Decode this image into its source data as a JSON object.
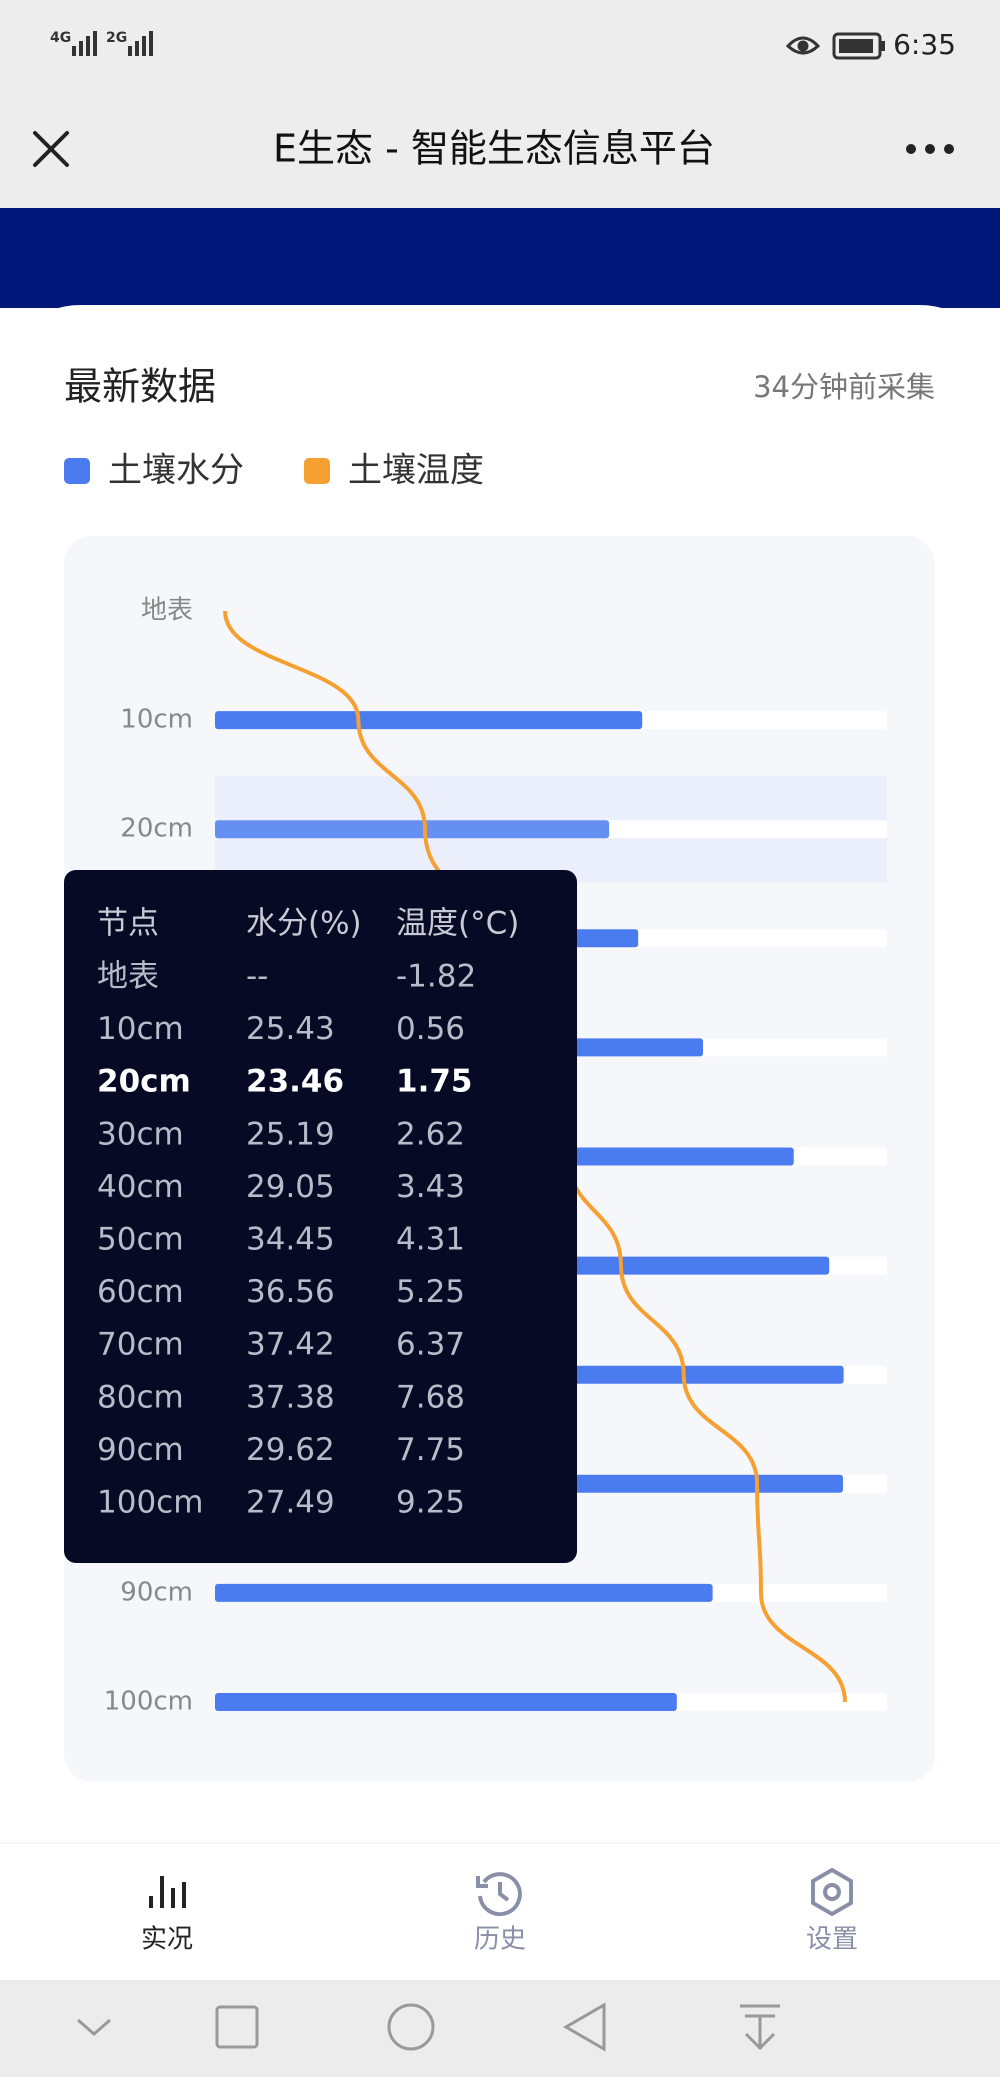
{
  "status_bar": {
    "signal_1": "4G",
    "signal_2": "2G",
    "time": "6:35"
  },
  "header": {
    "title": "E生态 - 智能生态信息平台"
  },
  "card": {
    "title": "最新数据",
    "subtitle": "34分钟前采集"
  },
  "chart_data": {
    "type": "bar",
    "orientation": "horizontal",
    "categories": [
      "地表",
      "10cm",
      "20cm",
      "30cm",
      "40cm",
      "50cm",
      "60cm",
      "70cm",
      "80cm",
      "90cm",
      "100cm"
    ],
    "series": [
      {
        "name": "土壤水分",
        "color": "#4a7cf0",
        "type": "bar",
        "values": [
          null,
          25.43,
          23.46,
          25.19,
          29.05,
          34.45,
          36.56,
          37.42,
          37.38,
          29.62,
          27.49
        ]
      },
      {
        "name": "土壤温度",
        "color": "#f5a031",
        "type": "line",
        "axis": "x2",
        "values": [
          -1.82,
          0.56,
          1.75,
          2.62,
          3.43,
          4.31,
          5.25,
          6.37,
          7.68,
          7.75,
          9.25
        ]
      }
    ],
    "xlim": [
      0,
      40
    ],
    "x2lim": [
      -2,
      10
    ],
    "highlight_index": 2
  },
  "tooltip": {
    "headers": [
      "节点",
      "水分(%)",
      "温度(°C)"
    ],
    "rows": [
      [
        "地表",
        "--",
        "-1.82"
      ],
      [
        "10cm",
        "25.43",
        "0.56"
      ],
      [
        "20cm",
        "23.46",
        "1.75"
      ],
      [
        "30cm",
        "25.19",
        "2.62"
      ],
      [
        "40cm",
        "29.05",
        "3.43"
      ],
      [
        "50cm",
        "34.45",
        "4.31"
      ],
      [
        "60cm",
        "36.56",
        "5.25"
      ],
      [
        "70cm",
        "37.42",
        "6.37"
      ],
      [
        "80cm",
        "37.38",
        "7.68"
      ],
      [
        "90cm",
        "29.62",
        "7.75"
      ],
      [
        "100cm",
        "27.49",
        "9.25"
      ]
    ]
  },
  "bottom_nav": {
    "tabs": [
      {
        "label": "实况",
        "active": true
      },
      {
        "label": "历史",
        "active": false
      },
      {
        "label": "设置",
        "active": false
      }
    ]
  }
}
